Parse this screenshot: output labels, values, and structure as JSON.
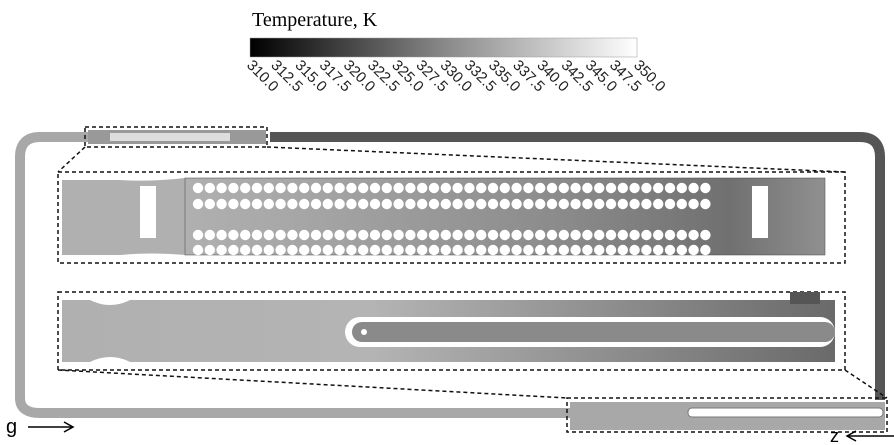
{
  "colorbar": {
    "title": "Temperature, K",
    "ticks": [
      "310.0",
      "312.5",
      "315.0",
      "317.5",
      "320.0",
      "322.5",
      "325.0",
      "327.5",
      "330.0",
      "332.5",
      "335.0",
      "337.5",
      "340.0",
      "342.5",
      "345.0",
      "347.5",
      "350.0"
    ]
  },
  "labels": {
    "gravity": "g",
    "axis": "z"
  }
}
